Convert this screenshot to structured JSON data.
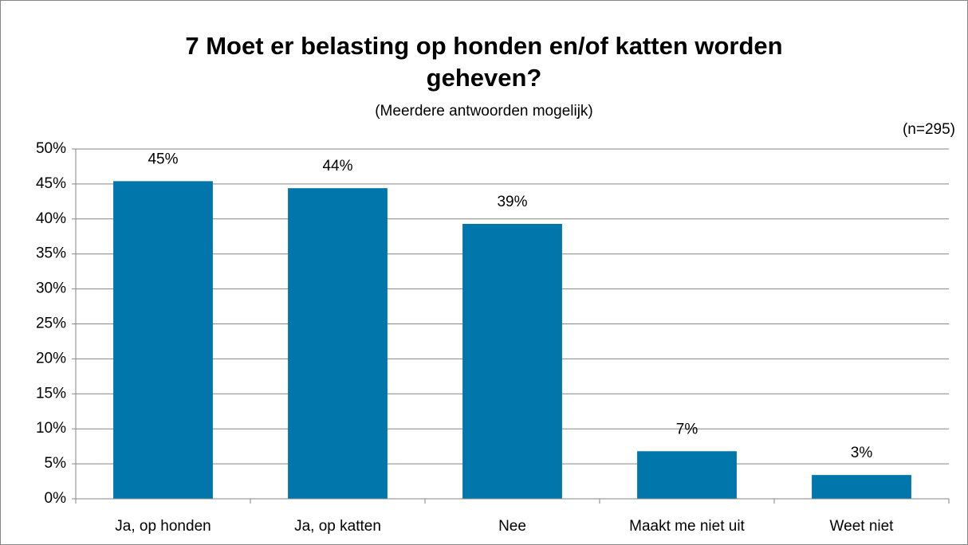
{
  "chart_data": {
    "type": "bar",
    "title": "7 Moet er belasting op honden en/of katten worden geheven?",
    "subtitle": "(Meerdere antwoorden mogelijk)",
    "annotation": "(n=295)",
    "categories": [
      "Ja, op honden",
      "Ja, op katten",
      "Nee",
      "Maakt me niet uit",
      "Weet niet"
    ],
    "values": [
      45.4,
      44.4,
      39.3,
      6.8,
      3.4
    ],
    "value_labels": [
      "45%",
      "44%",
      "39%",
      "7%",
      "3%"
    ],
    "color": "#0076ab",
    "ylim": [
      0,
      50
    ],
    "yticks": [
      {
        "value": 0,
        "label": "0%"
      },
      {
        "value": 5,
        "label": "5%"
      },
      {
        "value": 10,
        "label": "10%"
      },
      {
        "value": 15,
        "label": "15%"
      },
      {
        "value": 20,
        "label": "20%"
      },
      {
        "value": 25,
        "label": "25%"
      },
      {
        "value": 30,
        "label": "30%"
      },
      {
        "value": 35,
        "label": "35%"
      },
      {
        "value": 40,
        "label": "40%"
      },
      {
        "value": 45,
        "label": "45%"
      },
      {
        "value": 50,
        "label": "50%"
      }
    ],
    "grid": true
  }
}
